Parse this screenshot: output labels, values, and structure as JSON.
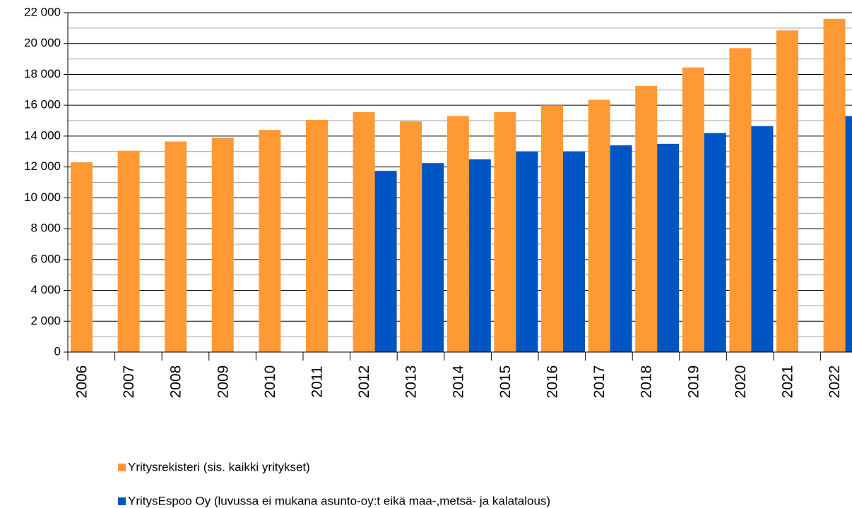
{
  "chart_data": {
    "type": "bar",
    "categories": [
      "2006",
      "2007",
      "2008",
      "2009",
      "2010",
      "2011",
      "2012",
      "2013",
      "2014",
      "2015",
      "2016",
      "2017",
      "2018",
      "2019",
      "2020",
      "2021",
      "2022"
    ],
    "series": [
      {
        "name": "Yritysrekisteri (sis. kaikki yritykset)",
        "color": "#ff9933",
        "values": [
          12300,
          13050,
          13650,
          13900,
          14400,
          15050,
          15550,
          14950,
          15300,
          15550,
          16000,
          16350,
          17250,
          18450,
          19700,
          20850,
          21600
        ]
      },
      {
        "name": "YritysEspoo Oy (luvussa ei mukana asunto-oy:t eikä maa-,metsä- ja kalatalous)",
        "color": "#0055c4",
        "values": [
          null,
          null,
          null,
          null,
          null,
          null,
          11750,
          12250,
          12500,
          13000,
          13000,
          13400,
          13500,
          14200,
          14650,
          null,
          15300
        ]
      }
    ],
    "ylim": [
      0,
      22000
    ],
    "yticks": [
      0,
      {
        "value": 2000,
        "label": "2 000"
      },
      {
        "value": 4000,
        "label": "4 000"
      },
      {
        "value": 6000,
        "label": "6 000"
      },
      {
        "value": 8000,
        "label": "8 000"
      },
      {
        "value": 10000,
        "label": "10 000"
      },
      {
        "value": 12000,
        "label": "12 000"
      },
      {
        "value": 14000,
        "label": "14 000"
      },
      {
        "value": 16000,
        "label": "16 000"
      },
      {
        "value": 18000,
        "label": "18 000"
      },
      {
        "value": 20000,
        "label": "20 000"
      },
      {
        "value": 22000,
        "label": "22 000"
      }
    ],
    "grid": true,
    "minor_grid": true,
    "legend": "bottom"
  }
}
